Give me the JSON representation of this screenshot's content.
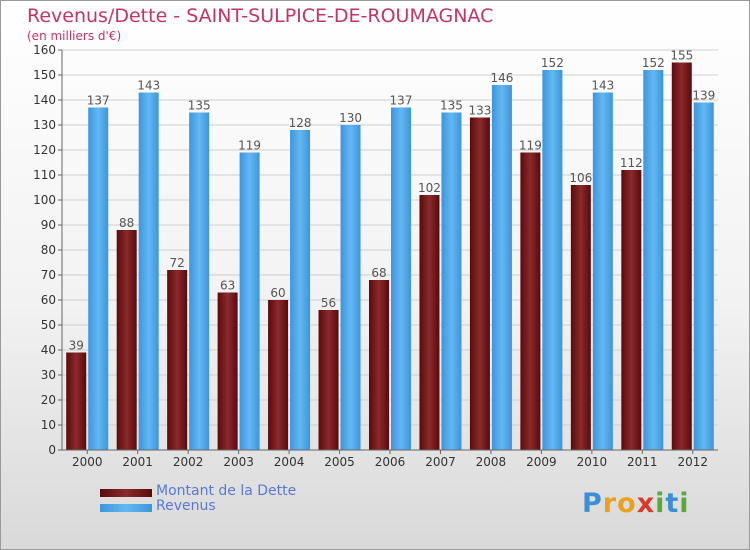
{
  "chart_data": {
    "type": "bar",
    "title": "Revenus/Dette - SAINT-SULPICE-DE-ROUMAGNAC",
    "subtitle": "(en milliers d'€)",
    "categories": [
      "2000",
      "2001",
      "2002",
      "2003",
      "2004",
      "2005",
      "2006",
      "2007",
      "2008",
      "2009",
      "2010",
      "2011",
      "2012"
    ],
    "series": [
      {
        "name": "Montant de la Dette",
        "color": "#6e1416",
        "values": [
          39,
          88,
          72,
          63,
          60,
          56,
          68,
          102,
          133,
          119,
          106,
          112,
          155
        ]
      },
      {
        "name": "Revenus",
        "color": "#4aa3e6",
        "values": [
          137,
          143,
          135,
          119,
          128,
          130,
          137,
          135,
          146,
          152,
          143,
          152,
          139
        ]
      }
    ],
    "ylim": [
      0,
      160
    ],
    "yticks": [
      0,
      10,
      20,
      30,
      40,
      50,
      60,
      70,
      80,
      90,
      100,
      110,
      120,
      130,
      140,
      150,
      160
    ],
    "grid": true,
    "legend_position": "bottom-left"
  },
  "logo": {
    "letters": [
      {
        "ch": "P",
        "color": "#3b8fd6"
      },
      {
        "ch": "r",
        "color": "#e8a21d"
      },
      {
        "ch": "o",
        "color": "#e8a21d"
      },
      {
        "ch": "x",
        "color": "#d93b2b"
      },
      {
        "ch": "i",
        "color": "#5aa83a"
      },
      {
        "ch": "t",
        "color": "#3b8fd6"
      },
      {
        "ch": "i",
        "color": "#5aa83a"
      }
    ]
  }
}
